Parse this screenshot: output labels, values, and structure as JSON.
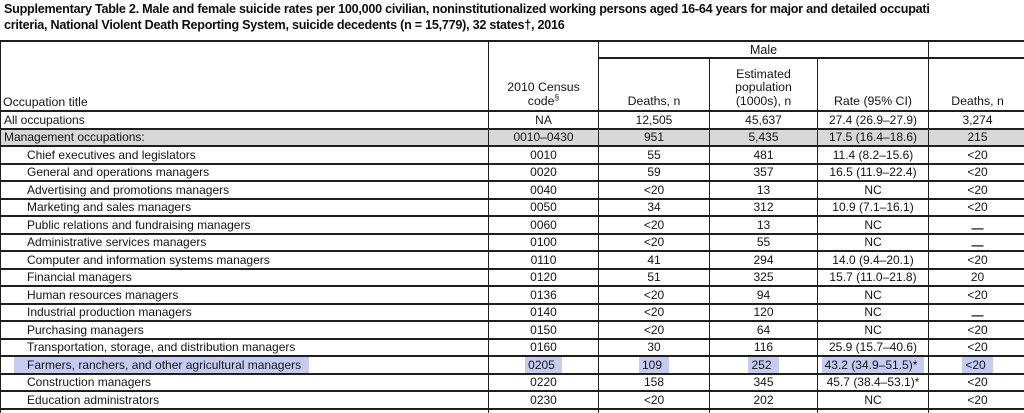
{
  "title": {
    "line1": "Supplementary Table 2. Male and female suicide rates per 100,000 civilian, noninstitutionalized working persons aged 16-64 years for major and detailed occupati",
    "line2": "criteria, National Violent Death Reporting System, suicide decedents (n = 15,779), 32 states†, 2016"
  },
  "table": {
    "headers": {
      "occupation": "Occupation title",
      "census_code": "2010 Census code",
      "census_code_sup": "§",
      "male_group": "Male",
      "deaths": "Deaths, n",
      "population": "Estimated population (1000s), n",
      "rate": "Rate (95% CI)",
      "female_deaths": "Deaths, n"
    },
    "colors": {
      "shaded_row": "#d8d8d8",
      "highlight": "#c5cbf1",
      "border": "#1f1f1f"
    },
    "rows": [
      {
        "occupation": "All occupations",
        "indent": false,
        "shaded": false,
        "highlight": false,
        "code": "NA",
        "deaths": "12,505",
        "population": "45,637",
        "rate": "27.4 (26.9–27.9)",
        "f_deaths": "3,274",
        "dash": false
      },
      {
        "occupation": "Management occupations:",
        "indent": false,
        "shaded": true,
        "highlight": false,
        "code": "0010–0430",
        "deaths": "951",
        "population": "5,435",
        "rate": "17.5 (16.4–18.6)",
        "f_deaths": "215",
        "dash": false
      },
      {
        "occupation": "Chief executives and legislators",
        "indent": true,
        "shaded": false,
        "highlight": false,
        "code": "0010",
        "deaths": "55",
        "population": "481",
        "rate": "11.4 (8.2–15.6)",
        "f_deaths": "<20",
        "dash": false
      },
      {
        "occupation": "General and operations managers",
        "indent": true,
        "shaded": false,
        "highlight": false,
        "code": "0020",
        "deaths": "59",
        "population": "357",
        "rate": "16.5 (11.9–22.4)",
        "f_deaths": "<20",
        "dash": false
      },
      {
        "occupation": "Advertising and promotions managers",
        "indent": true,
        "shaded": false,
        "highlight": false,
        "code": "0040",
        "deaths": "<20",
        "population": "13",
        "rate": "NC",
        "f_deaths": "<20",
        "dash": false
      },
      {
        "occupation": "Marketing and sales managers",
        "indent": true,
        "shaded": false,
        "highlight": false,
        "code": "0050",
        "deaths": "34",
        "population": "312",
        "rate": "10.9 (7.1–16.1)",
        "f_deaths": "<20",
        "dash": false
      },
      {
        "occupation": "Public relations and fundraising managers",
        "indent": true,
        "shaded": false,
        "highlight": false,
        "code": "0060",
        "deaths": "<20",
        "population": "13",
        "rate": "NC",
        "f_deaths": "—",
        "dash": true
      },
      {
        "occupation": "Administrative services managers",
        "indent": true,
        "shaded": false,
        "highlight": false,
        "code": "0100",
        "deaths": "<20",
        "population": "55",
        "rate": "NC",
        "f_deaths": "—",
        "dash": true
      },
      {
        "occupation": "Computer and information systems managers",
        "indent": true,
        "shaded": false,
        "highlight": false,
        "code": "0110",
        "deaths": "41",
        "population": "294",
        "rate": "14.0 (9.4–20.1)",
        "f_deaths": "<20",
        "dash": false
      },
      {
        "occupation": "Financial managers",
        "indent": true,
        "shaded": false,
        "highlight": false,
        "code": "0120",
        "deaths": "51",
        "population": "325",
        "rate": "15.7 (11.0–21.8)",
        "f_deaths": "20",
        "dash": false
      },
      {
        "occupation": "Human resources managers",
        "indent": true,
        "shaded": false,
        "highlight": false,
        "code": "0136",
        "deaths": "<20",
        "population": "94",
        "rate": "NC",
        "f_deaths": "<20",
        "dash": false
      },
      {
        "occupation": "Industrial production managers",
        "indent": true,
        "shaded": false,
        "highlight": false,
        "code": "0140",
        "deaths": "<20",
        "population": "120",
        "rate": "NC",
        "f_deaths": "—",
        "dash": true
      },
      {
        "occupation": "Purchasing managers",
        "indent": true,
        "shaded": false,
        "highlight": false,
        "code": "0150",
        "deaths": "<20",
        "population": "64",
        "rate": "NC",
        "f_deaths": "<20",
        "dash": false
      },
      {
        "occupation": "Transportation, storage, and distribution managers",
        "indent": true,
        "shaded": false,
        "highlight": false,
        "code": "0160",
        "deaths": "30",
        "population": "116",
        "rate": "25.9 (15.7–40.6)",
        "f_deaths": "<20",
        "dash": false
      },
      {
        "occupation": "Farmers, ranchers, and other agricultural managers",
        "indent": true,
        "shaded": false,
        "highlight": true,
        "code": "0205",
        "deaths": "109",
        "population": "252",
        "rate": "43.2 (34.9–51.5)*",
        "f_deaths": "<20",
        "dash": false
      },
      {
        "occupation": "Construction managers",
        "indent": true,
        "shaded": false,
        "highlight": false,
        "code": "0220",
        "deaths": "158",
        "population": "345",
        "rate": "45.7 (38.4–53.1)*",
        "f_deaths": "<20",
        "dash": false
      },
      {
        "occupation": "Education administrators",
        "indent": true,
        "shaded": false,
        "highlight": false,
        "code": "0230",
        "deaths": "<20",
        "population": "202",
        "rate": "NC",
        "f_deaths": "<20",
        "dash": false
      }
    ]
  }
}
